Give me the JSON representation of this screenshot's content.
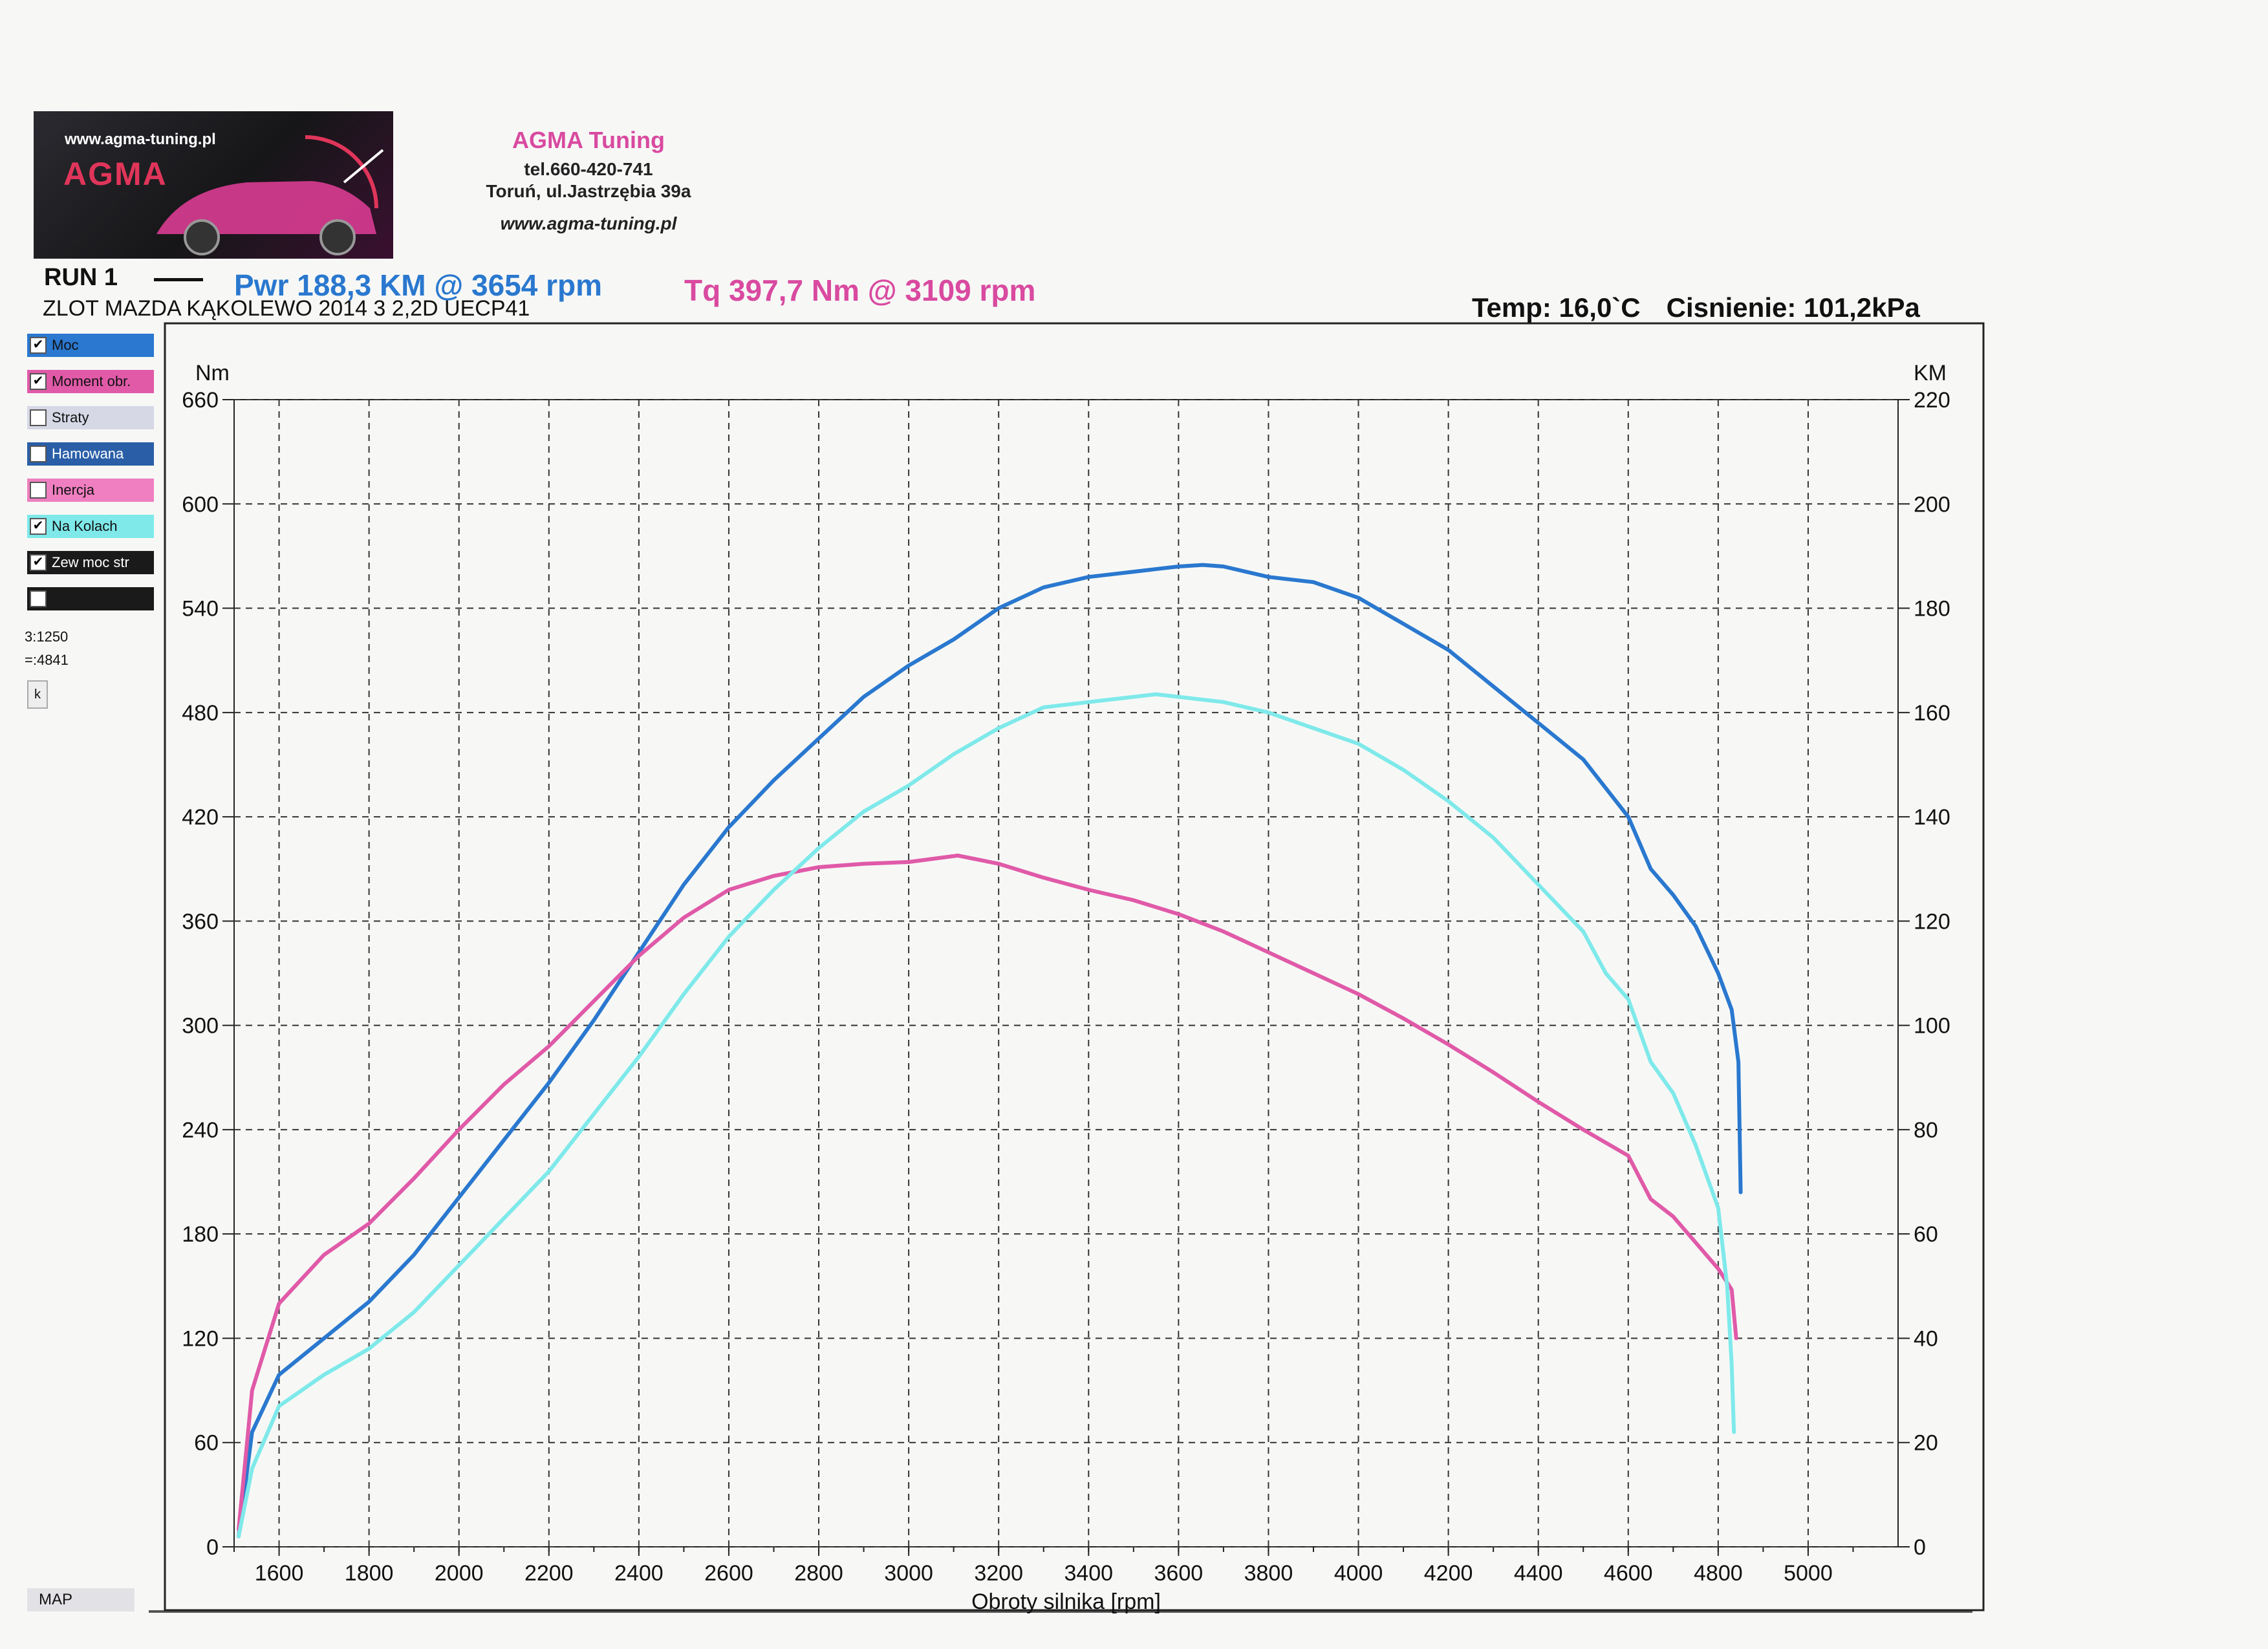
{
  "header": {
    "logo_url": "www.agma-tuning.pl",
    "logo_brand": "AGMA",
    "company": "AGMA Tuning",
    "phone": "tel.660-420-741",
    "address": "Toruń, ul.Jastrzębia 39a",
    "website": "www.agma-tuning.pl",
    "run": "RUN 1",
    "description": "ZLOT MAZDA KĄKOLEWO 2014 3 2,2D UECP41",
    "power_summary": "Pwr  188,3 KM @ 3654 rpm",
    "torque_summary": "Tq  397,7 Nm @ 3109 rpm",
    "temp": "Temp: 16,0`C",
    "pressure": "Cisnienie: 101,2kPa"
  },
  "sidebar": {
    "checkboxes": [
      {
        "label": "Moc",
        "checked": true,
        "color": "#2a78cf"
      },
      {
        "label": "Moment obr.",
        "checked": true,
        "color": "#e05aa8"
      },
      {
        "label": "Straty",
        "checked": false,
        "color": "#d6d8e6"
      },
      {
        "label": "Hamowana",
        "checked": false,
        "color": "#2a5fa8"
      },
      {
        "label": "Inercja",
        "checked": false,
        "color": "#ef7fc0"
      },
      {
        "label": "Na Kolach",
        "checked": true,
        "color": "#7fe9ea"
      },
      {
        "label": "Zew moc str",
        "checked": true,
        "color": "#1a1a1a"
      },
      {
        "label": "",
        "checked": false,
        "color": "#1a1a1a"
      }
    ],
    "info_1": "3:1250",
    "info_2": "=:4841",
    "button_k": "k",
    "map_button": "MAP"
  },
  "chart_data": {
    "type": "line",
    "xlabel": "Obroty silnika [rpm]",
    "ylabel_left": "Nm",
    "ylabel_right": "KM",
    "x_range": [
      1500,
      5200
    ],
    "ylim_left": [
      0,
      660
    ],
    "ylim_right": [
      0,
      220
    ],
    "x_ticks": [
      1600,
      1800,
      2000,
      2200,
      2400,
      2600,
      2800,
      3000,
      3200,
      3400,
      3600,
      3800,
      4000,
      4200,
      4400,
      4600,
      4800,
      5000
    ],
    "y_ticks_left": [
      0,
      60,
      120,
      180,
      240,
      300,
      360,
      420,
      480,
      540,
      600,
      660
    ],
    "y_ticks_right": [
      0,
      20,
      40,
      60,
      80,
      100,
      120,
      140,
      160,
      180,
      200,
      220
    ],
    "grid": true,
    "series": [
      {
        "name": "Moc",
        "axis": "right",
        "unit": "KM",
        "color": "#2a78cf",
        "x": [
          1510,
          1540,
          1600,
          1700,
          1800,
          1900,
          2000,
          2100,
          2200,
          2300,
          2400,
          2500,
          2600,
          2700,
          2800,
          2900,
          3000,
          3100,
          3200,
          3300,
          3400,
          3500,
          3600,
          3654,
          3700,
          3800,
          3900,
          4000,
          4100,
          4200,
          4300,
          4400,
          4500,
          4600,
          4650,
          4700,
          4750,
          4800,
          4830,
          4845,
          4850
        ],
        "y": [
          2,
          22,
          33,
          40,
          47,
          56,
          67,
          78,
          89,
          101,
          114,
          127,
          138,
          147,
          155,
          163,
          169,
          174,
          180,
          184,
          186,
          187,
          188,
          188.3,
          188,
          186,
          185,
          182,
          177,
          172,
          165,
          158,
          151,
          140,
          130,
          125,
          119,
          110,
          103,
          93,
          68
        ]
      },
      {
        "name": "Moment obr.",
        "axis": "left",
        "unit": "Nm",
        "color": "#e05aa8",
        "x": [
          1510,
          1540,
          1600,
          1700,
          1800,
          1900,
          2000,
          2100,
          2200,
          2300,
          2400,
          2500,
          2600,
          2700,
          2800,
          2900,
          3000,
          3109,
          3200,
          3300,
          3400,
          3500,
          3600,
          3700,
          3800,
          3900,
          4000,
          4100,
          4200,
          4300,
          4400,
          4500,
          4600,
          4650,
          4700,
          4750,
          4800,
          4830,
          4840
        ],
        "y": [
          10,
          90,
          140,
          168,
          186,
          212,
          240,
          266,
          288,
          314,
          340,
          362,
          378,
          386,
          391,
          393,
          394,
          397.7,
          393,
          385,
          378,
          372,
          364,
          354,
          342,
          330,
          318,
          304,
          289,
          273,
          256,
          240,
          225,
          200,
          190,
          175,
          160,
          148,
          120
        ]
      },
      {
        "name": "Na Kolach",
        "axis": "right",
        "unit": "KM",
        "color": "#7fe9ea",
        "x": [
          1510,
          1540,
          1600,
          1700,
          1800,
          1900,
          2000,
          2100,
          2200,
          2300,
          2400,
          2500,
          2600,
          2700,
          2800,
          2900,
          3000,
          3100,
          3200,
          3300,
          3400,
          3500,
          3550,
          3600,
          3700,
          3800,
          3900,
          4000,
          4100,
          4200,
          4300,
          4400,
          4500,
          4550,
          4600,
          4650,
          4700,
          4750,
          4800,
          4820,
          4830,
          4835
        ],
        "y": [
          2,
          15,
          27,
          33,
          38,
          45,
          54,
          63,
          72,
          83,
          94,
          106,
          117,
          126,
          134,
          141,
          146,
          152,
          157,
          161,
          162,
          163,
          163.5,
          163,
          162,
          160,
          157,
          154,
          149,
          143,
          136,
          127,
          118,
          110,
          105,
          93,
          87,
          77,
          65,
          50,
          35,
          22
        ]
      }
    ]
  }
}
